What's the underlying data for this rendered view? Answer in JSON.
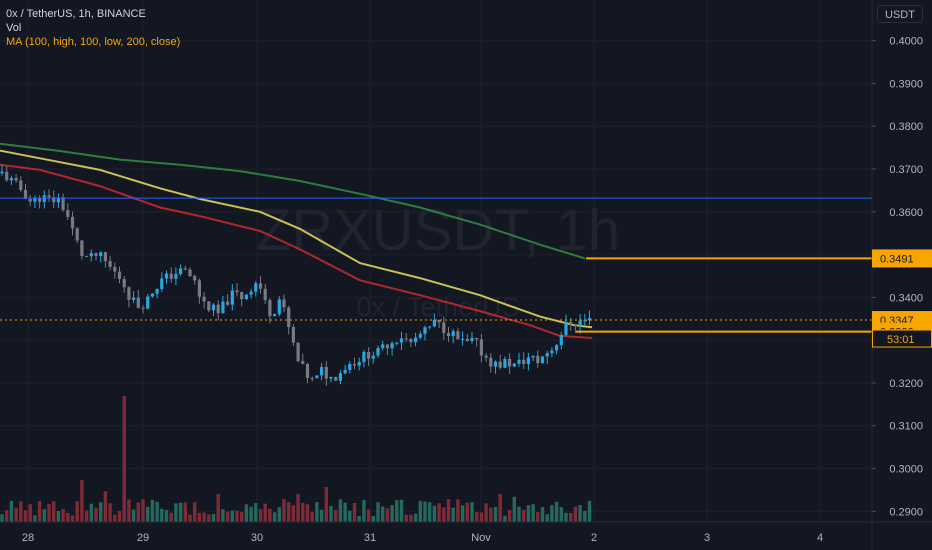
{
  "header": {
    "symbol_line": "0x / TetherUS, 1h, BINANCE",
    "vol_label": "Vol",
    "ma_label": "MA (100, high, 100, low, 200, close)",
    "scale_button": "USDT"
  },
  "watermark": {
    "ticker": "ZRXUSDT, 1h",
    "name": "0x / TetherUS"
  },
  "colors": {
    "background": "#131722",
    "up": "#26a9e0",
    "down": "#787b86",
    "vol_up": "#22695e",
    "vol_down": "#7e2b35",
    "ma_high": "#c9c255",
    "ma_low": "#b2272f",
    "ma_close": "#2e7d3f",
    "horizontal_line": "#2962ff",
    "price_tag": "#f7a600",
    "axis_text": "#b2b5be"
  },
  "chart_data": {
    "type": "candlestick",
    "interval": "1h",
    "y_axis": {
      "ticks": [
        "0.4000",
        "0.3900",
        "0.3800",
        "0.3700",
        "0.3600",
        "0.3500",
        "0.3400",
        "0.3300",
        "0.3200",
        "0.3100",
        "0.3000",
        "0.2900"
      ],
      "range": [
        0.2875,
        0.4095
      ]
    },
    "x_axis": {
      "ticks": [
        "28",
        "29",
        "30",
        "31",
        "Nov",
        "2",
        "3",
        "4"
      ]
    },
    "price_labels": [
      {
        "text": "0.3491",
        "value": 0.3491,
        "style": "filled"
      },
      {
        "text": "0.3347",
        "value": 0.3347,
        "style": "filled"
      },
      {
        "text": "53:01",
        "style": "outline"
      },
      {
        "text": "0.3320",
        "value": 0.332,
        "style": "filled"
      }
    ],
    "last_price": 0.3347,
    "horizontal_line": 0.3632,
    "moving_averages": [
      {
        "name": "MA 100 high",
        "color": "#c9c255",
        "x": [
          0,
          40,
          100,
          160,
          200,
          260,
          300,
          360,
          420,
          480,
          540,
          574,
          592
        ],
        "y": [
          0.3743,
          0.3725,
          0.3698,
          0.3655,
          0.363,
          0.36,
          0.356,
          0.348,
          0.3445,
          0.3405,
          0.3355,
          0.3335,
          0.333
        ]
      },
      {
        "name": "MA 100 low",
        "color": "#b2272f",
        "x": [
          0,
          40,
          100,
          160,
          200,
          260,
          300,
          360,
          420,
          480,
          530,
          560,
          592
        ],
        "y": [
          0.371,
          0.3698,
          0.366,
          0.361,
          0.359,
          0.3555,
          0.3512,
          0.344,
          0.3405,
          0.3368,
          0.3335,
          0.331,
          0.3305
        ]
      },
      {
        "name": "MA 200 close",
        "color": "#2e7d3f",
        "x": [
          0,
          60,
          120,
          180,
          240,
          300,
          360,
          420,
          480,
          540,
          585
        ],
        "y": [
          0.3759,
          0.3742,
          0.3722,
          0.371,
          0.3695,
          0.3672,
          0.3642,
          0.361,
          0.357,
          0.3523,
          0.3491
        ]
      }
    ],
    "close_path": [
      [
        2,
        0.369
      ],
      [
        12,
        0.367
      ],
      [
        22,
        0.365
      ],
      [
        32,
        0.362
      ],
      [
        40,
        0.3635
      ],
      [
        52,
        0.3625
      ],
      [
        58,
        0.3632
      ],
      [
        66,
        0.36
      ],
      [
        75,
        0.354
      ],
      [
        82,
        0.35
      ],
      [
        90,
        0.349
      ],
      [
        98,
        0.35
      ],
      [
        106,
        0.348
      ],
      [
        114,
        0.346
      ],
      [
        122,
        0.344
      ],
      [
        130,
        0.34
      ],
      [
        138,
        0.338
      ],
      [
        146,
        0.339
      ],
      [
        154,
        0.342
      ],
      [
        162,
        0.344
      ],
      [
        170,
        0.345
      ],
      [
        178,
        0.346
      ],
      [
        186,
        0.346
      ],
      [
        194,
        0.344
      ],
      [
        200,
        0.34
      ],
      [
        206,
        0.338
      ],
      [
        212,
        0.3375
      ],
      [
        218,
        0.336
      ],
      [
        226,
        0.339
      ],
      [
        234,
        0.341
      ],
      [
        242,
        0.34
      ],
      [
        250,
        0.342
      ],
      [
        258,
        0.344
      ],
      [
        266,
        0.338
      ],
      [
        272,
        0.336
      ],
      [
        280,
        0.34
      ],
      [
        286,
        0.335
      ],
      [
        292,
        0.33
      ],
      [
        298,
        0.325
      ],
      [
        306,
        0.322
      ],
      [
        314,
        0.32
      ],
      [
        322,
        0.323
      ],
      [
        330,
        0.321
      ],
      [
        338,
        0.322
      ],
      [
        346,
        0.324
      ],
      [
        354,
        0.325
      ],
      [
        362,
        0.326
      ],
      [
        370,
        0.327
      ],
      [
        378,
        0.327
      ],
      [
        386,
        0.329
      ],
      [
        394,
        0.33
      ],
      [
        402,
        0.331
      ],
      [
        410,
        0.329
      ],
      [
        418,
        0.331
      ],
      [
        426,
        0.332
      ],
      [
        434,
        0.334
      ],
      [
        442,
        0.333
      ],
      [
        450,
        0.332
      ],
      [
        458,
        0.33
      ],
      [
        466,
        0.329
      ],
      [
        474,
        0.33
      ],
      [
        482,
        0.327
      ],
      [
        490,
        0.325
      ],
      [
        498,
        0.324
      ],
      [
        506,
        0.325
      ],
      [
        514,
        0.324
      ],
      [
        522,
        0.325
      ],
      [
        530,
        0.326
      ],
      [
        538,
        0.325
      ],
      [
        546,
        0.327
      ],
      [
        552,
        0.328
      ],
      [
        558,
        0.33
      ],
      [
        564,
        0.333
      ],
      [
        570,
        0.334
      ],
      [
        576,
        0.334
      ],
      [
        582,
        0.3345
      ],
      [
        588,
        0.3347
      ]
    ],
    "volume_spikes": {
      "40": 0.15,
      "84": 0.3,
      "104": 0.22,
      "124": 0.9,
      "218": 0.2,
      "300": 0.2,
      "326": 0.25,
      "498": 0.2,
      "516": 0.18
    }
  }
}
